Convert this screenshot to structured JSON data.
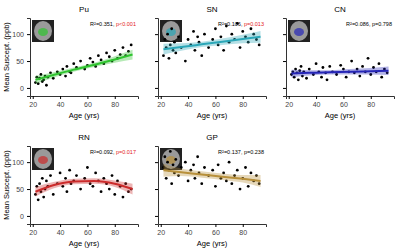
{
  "chart_data": [
    {
      "type": "scatter",
      "title": "Pu",
      "xlabel": "Age (yrs)",
      "ylabel": "Mean Suscept. (ppb)",
      "color": "#000000",
      "x": [
        22,
        23,
        24,
        25,
        26,
        27,
        28,
        29,
        30,
        31,
        33,
        35,
        38,
        40,
        42,
        44,
        45,
        47,
        48,
        50,
        52,
        55,
        58,
        60,
        62,
        64,
        66,
        68,
        70,
        72,
        74,
        76,
        78,
        80,
        82,
        84,
        86,
        88,
        90,
        92
      ],
      "values": [
        10,
        20,
        8,
        18,
        25,
        12,
        15,
        22,
        5,
        20,
        28,
        18,
        30,
        25,
        35,
        22,
        40,
        30,
        28,
        45,
        38,
        50,
        35,
        42,
        55,
        48,
        40,
        60,
        52,
        45,
        65,
        58,
        50,
        70,
        55,
        62,
        75,
        60,
        68,
        80
      ],
      "fit": {
        "color": "#2fc42f",
        "x": [
          22,
          35,
          50,
          65,
          80,
          93
        ],
        "values": [
          15,
          24,
          34,
          43,
          53,
          62
        ],
        "lower": [
          8,
          19,
          30,
          39,
          47,
          53
        ],
        "upper": [
          22,
          29,
          38,
          47,
          59,
          71
        ]
      },
      "annotations": [
        {
          "text": "R²=0.351, "
        },
        {
          "text": "p<0.001",
          "color": "#e41a1c"
        }
      ],
      "xlim": [
        18,
        97
      ],
      "ylim": [
        -15,
        130
      ],
      "xticks": [
        20,
        40,
        60,
        80
      ],
      "yticks": [
        0,
        50,
        100
      ],
      "grid": false
    },
    {
      "type": "scatter",
      "title": "SN",
      "xlabel": "Age (yrs)",
      "color": "#000000",
      "tick_labels": "x",
      "x": [
        22,
        23,
        24,
        25,
        26,
        27,
        28,
        29,
        30,
        31,
        33,
        35,
        38,
        40,
        42,
        44,
        45,
        47,
        48,
        50,
        52,
        55,
        58,
        60,
        62,
        64,
        66,
        68,
        70,
        72,
        74,
        76,
        78,
        80,
        82,
        84,
        86,
        88,
        90,
        92
      ],
      "values": [
        60,
        90,
        75,
        100,
        55,
        80,
        110,
        70,
        85,
        65,
        95,
        75,
        50,
        90,
        80,
        105,
        70,
        95,
        85,
        60,
        100,
        75,
        90,
        110,
        80,
        95,
        70,
        115,
        85,
        100,
        90,
        120,
        75,
        105,
        95,
        85,
        110,
        100,
        90,
        80
      ],
      "fit": {
        "color": "#2aa7b8",
        "x": [
          22,
          35,
          50,
          65,
          80,
          93
        ],
        "values": [
          72,
          76,
          81,
          86,
          91,
          95
        ],
        "lower": [
          62,
          69,
          76,
          80,
          83,
          84
        ],
        "upper": [
          82,
          83,
          86,
          92,
          99,
          106
        ]
      },
      "annotations": [
        {
          "text": "R²=0.106, "
        },
        {
          "text": "p=0.013",
          "color": "#e41a1c"
        }
      ],
      "xlim": [
        18,
        97
      ],
      "ylim": [
        -15,
        130
      ],
      "xticks": [
        20,
        40,
        60,
        80
      ],
      "yticks": [
        0,
        50,
        100
      ],
      "grid": false
    },
    {
      "type": "scatter",
      "title": "CN",
      "xlabel": "Age (yrs)",
      "color": "#000000",
      "tick_labels": "x",
      "x": [
        22,
        23,
        24,
        25,
        26,
        27,
        28,
        29,
        30,
        31,
        33,
        35,
        38,
        40,
        42,
        44,
        45,
        47,
        48,
        50,
        52,
        55,
        58,
        60,
        62,
        64,
        66,
        68,
        70,
        72,
        74,
        76,
        78,
        80,
        82,
        84,
        86,
        88,
        90,
        92
      ],
      "values": [
        25,
        30,
        20,
        35,
        28,
        15,
        32,
        40,
        22,
        30,
        18,
        35,
        25,
        45,
        30,
        20,
        38,
        28,
        15,
        40,
        30,
        25,
        42,
        35,
        20,
        30,
        50,
        28,
        35,
        22,
        40,
        30,
        55,
        25,
        38,
        30,
        45,
        20,
        35,
        28
      ],
      "fit": {
        "color": "#2626b8",
        "x": [
          22,
          35,
          50,
          65,
          80,
          93
        ],
        "values": [
          27,
          28,
          29,
          30,
          31,
          32
        ],
        "lower": [
          20,
          23,
          25,
          25,
          25,
          24
        ],
        "upper": [
          34,
          33,
          33,
          35,
          37,
          40
        ]
      },
      "annotations": [
        {
          "text": "R²=0.086, "
        },
        {
          "text": "p=0.798",
          "color": "#000000"
        }
      ],
      "xlim": [
        18,
        97
      ],
      "ylim": [
        -15,
        130
      ],
      "xticks": [
        20,
        40,
        60,
        80
      ],
      "yticks": [
        0,
        50,
        100
      ],
      "grid": false
    },
    {
      "type": "scatter",
      "title": "RN",
      "xlabel": "Age (yrs)",
      "ylabel": "Mean Suscept. (ppb)",
      "color": "#000000",
      "x": [
        22,
        23,
        24,
        25,
        26,
        27,
        28,
        29,
        30,
        31,
        33,
        35,
        38,
        40,
        42,
        44,
        45,
        47,
        48,
        50,
        52,
        55,
        58,
        60,
        62,
        64,
        66,
        68,
        70,
        72,
        74,
        76,
        78,
        80,
        82,
        84,
        86,
        88,
        90,
        92
      ],
      "values": [
        40,
        55,
        30,
        60,
        45,
        70,
        35,
        50,
        65,
        55,
        75,
        40,
        60,
        80,
        55,
        70,
        45,
        85,
        60,
        65,
        75,
        50,
        70,
        90,
        60,
        55,
        80,
        65,
        45,
        70,
        60,
        50,
        75,
        40,
        65,
        55,
        35,
        60,
        45,
        50
      ],
      "fit": {
        "color": "#cc2b2b",
        "x": [
          22,
          35,
          50,
          65,
          80,
          93
        ],
        "values": [
          45,
          57,
          64,
          65,
          60,
          50
        ],
        "lower": [
          36,
          51,
          59,
          60,
          54,
          40
        ],
        "upper": [
          54,
          63,
          69,
          70,
          66,
          60
        ]
      },
      "annotations": [
        {
          "text": "R²=0.092, "
        },
        {
          "text": "p=0.017",
          "color": "#e41a1c"
        }
      ],
      "xlim": [
        18,
        97
      ],
      "ylim": [
        -15,
        130
      ],
      "xticks": [
        20,
        40,
        60,
        80
      ],
      "yticks": [
        0,
        50,
        100
      ],
      "grid": false
    },
    {
      "type": "scatter",
      "title": "GP",
      "xlabel": "Age (yrs)",
      "color": "#000000",
      "tick_labels": "x",
      "x": [
        22,
        23,
        24,
        25,
        26,
        27,
        28,
        29,
        30,
        31,
        33,
        35,
        38,
        40,
        42,
        44,
        45,
        47,
        48,
        50,
        52,
        55,
        58,
        60,
        62,
        64,
        66,
        68,
        70,
        72,
        74,
        76,
        78,
        80,
        82,
        84,
        86,
        88,
        90,
        92
      ],
      "values": [
        90,
        110,
        70,
        100,
        85,
        120,
        60,
        95,
        80,
        105,
        75,
        90,
        100,
        65,
        85,
        95,
        70,
        110,
        80,
        60,
        90,
        75,
        85,
        55,
        95,
        70,
        80,
        65,
        100,
        60,
        75,
        85,
        50,
        70,
        90,
        55,
        80,
        65,
        75,
        60
      ],
      "fit": {
        "color": "#b8903a",
        "x": [
          22,
          35,
          50,
          65,
          80,
          93
        ],
        "values": [
          85,
          81,
          77,
          73,
          69,
          65
        ],
        "lower": [
          73,
          74,
          71,
          67,
          62,
          54
        ],
        "upper": [
          97,
          88,
          83,
          79,
          76,
          76
        ]
      },
      "annotations": [
        {
          "text": "R²=0.137, "
        },
        {
          "text": "p=0.238",
          "color": "#000000"
        }
      ],
      "xlim": [
        18,
        97
      ],
      "ylim": [
        -15,
        130
      ],
      "xticks": [
        20,
        40,
        60,
        80
      ],
      "yticks": [
        0,
        50,
        100
      ],
      "grid": false
    }
  ]
}
